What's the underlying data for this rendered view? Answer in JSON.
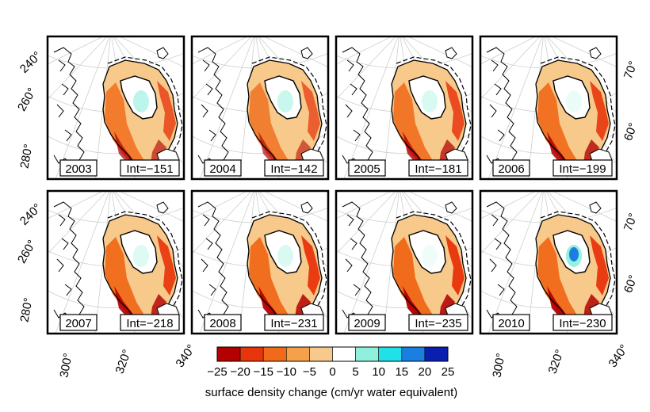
{
  "panels": [
    {
      "year": "2003",
      "integral": "Int=−151"
    },
    {
      "year": "2004",
      "integral": "Int=−142"
    },
    {
      "year": "2005",
      "integral": "Int=−181"
    },
    {
      "year": "2006",
      "integral": "Int=−199"
    },
    {
      "year": "2007",
      "integral": "Int=−218"
    },
    {
      "year": "2008",
      "integral": "Int=−231"
    },
    {
      "year": "2009",
      "integral": "Int=−235"
    },
    {
      "year": "2010",
      "integral": "Int=−230"
    }
  ],
  "axes": {
    "left_longitudes": [
      "240°",
      "260°",
      "280°"
    ],
    "bottom_longitudes": [
      "300°",
      "320°",
      "340°"
    ],
    "right_latitudes": [
      "70°",
      "60°"
    ]
  },
  "colorbar": {
    "tick_labels": [
      "−25",
      "−20",
      "−15",
      "−10",
      "−5",
      "0",
      "5",
      "10",
      "15",
      "20",
      "25"
    ],
    "label": "surface density change (cm/yr water equivalent)",
    "colors": [
      "#b30000",
      "#e8350c",
      "#f06a1a",
      "#f5a04a",
      "#f7c98a",
      "#ffffff",
      "#ffffff",
      "#8ff0dc",
      "#20e0e8",
      "#1a7fe0",
      "#0a1fb0"
    ]
  }
}
